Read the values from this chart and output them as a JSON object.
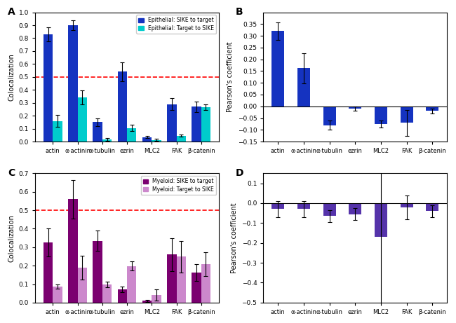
{
  "categories": [
    "actin",
    "α-actinin",
    "α-tubulin",
    "ezrin",
    "MLC2",
    "FAK",
    "β-catenin"
  ],
  "A": {
    "sike_to_target": [
      0.83,
      0.9,
      0.15,
      0.54,
      0.035,
      0.29,
      0.27
    ],
    "target_to_sike": [
      0.16,
      0.34,
      0.015,
      0.105,
      0.013,
      0.045,
      0.265
    ],
    "sike_err": [
      0.055,
      0.04,
      0.03,
      0.075,
      0.01,
      0.045,
      0.04
    ],
    "target_err": [
      0.045,
      0.055,
      0.01,
      0.025,
      0.008,
      0.008,
      0.02
    ],
    "ylabel": "Colocalization",
    "ylim": [
      0,
      1.0
    ],
    "yticks": [
      0.0,
      0.1,
      0.2,
      0.3,
      0.4,
      0.5,
      0.6,
      0.7,
      0.8,
      0.9,
      1.0
    ],
    "dashed_line": 0.5,
    "color1": "#1533c0",
    "color2": "#00cccc",
    "legend1": "Epithelial: SIKE to target",
    "legend2": "Epithelial: Target to SIKE",
    "label": "A"
  },
  "B": {
    "values": [
      0.32,
      0.162,
      -0.08,
      -0.01,
      -0.075,
      -0.07,
      -0.02
    ],
    "errors": [
      0.038,
      0.065,
      0.02,
      0.008,
      0.015,
      0.055,
      0.01
    ],
    "ylabel": "Pearson's coefficient",
    "ylim": [
      -0.15,
      0.4
    ],
    "yticks": [
      -0.15,
      -0.1,
      -0.05,
      0.0,
      0.05,
      0.1,
      0.15,
      0.2,
      0.25,
      0.3,
      0.35
    ],
    "color": "#1533c0",
    "label": "B"
  },
  "C": {
    "sike_to_target": [
      0.325,
      0.56,
      0.335,
      0.072,
      0.01,
      0.26,
      0.162
    ],
    "target_to_sike": [
      0.088,
      0.19,
      0.097,
      0.198,
      0.04,
      0.248,
      0.207
    ],
    "sike_err": [
      0.075,
      0.105,
      0.055,
      0.015,
      0.005,
      0.09,
      0.045
    ],
    "target_err": [
      0.012,
      0.065,
      0.015,
      0.025,
      0.03,
      0.085,
      0.065
    ],
    "ylabel": "Colocalization",
    "ylim": [
      0,
      0.7
    ],
    "yticks": [
      0.0,
      0.1,
      0.2,
      0.3,
      0.4,
      0.5,
      0.6,
      0.7
    ],
    "dashed_line": 0.5,
    "color1": "#7b0070",
    "color2": "#cc88cc",
    "legend1": "Myeloid: SIKE to target",
    "legend2": "Myeloid: Target to SIKE",
    "label": "C"
  },
  "D": {
    "values": [
      -0.03,
      -0.03,
      -0.065,
      -0.055,
      -0.17,
      -0.02,
      -0.04
    ],
    "errors": [
      0.04,
      0.04,
      0.03,
      0.03,
      0.35,
      0.06,
      0.03
    ],
    "ylabel": "Pearson's coefficient",
    "ylim": [
      -0.5,
      0.15
    ],
    "yticks": [
      -0.5,
      -0.4,
      -0.3,
      -0.2,
      -0.1,
      0.0,
      0.1
    ],
    "color": "#5533aa",
    "label": "D"
  },
  "background": "#ffffff",
  "bar_width": 0.38
}
